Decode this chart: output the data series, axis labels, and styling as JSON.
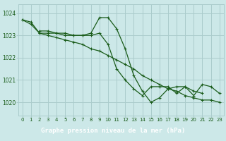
{
  "title": "Graphe pression niveau de la mer (hPa)",
  "bg_color": "#cce8e8",
  "plot_bg_color": "#cce8e8",
  "grid_color": "#aacccc",
  "line_color": "#1a5c1a",
  "label_bg_color": "#2d6e2d",
  "label_text_color": "#ffffff",
  "x_ticks": [
    0,
    1,
    2,
    3,
    4,
    5,
    6,
    7,
    8,
    9,
    10,
    11,
    12,
    13,
    14,
    15,
    16,
    17,
    18,
    19,
    20,
    21,
    22,
    23
  ],
  "y_ticks": [
    1020,
    1021,
    1022,
    1023,
    1024
  ],
  "ylim": [
    1019.4,
    1024.4
  ],
  "xlim": [
    -0.5,
    23.5
  ],
  "series_x": [
    [
      0,
      1,
      2,
      3,
      4,
      5,
      6,
      7,
      8,
      9,
      10,
      11,
      12,
      13,
      14,
      15,
      16,
      17,
      18,
      19,
      20,
      21,
      22,
      23
    ],
    [
      0,
      1,
      2,
      3,
      4,
      5,
      6,
      7,
      8,
      9,
      10,
      11,
      12,
      13,
      14,
      15,
      16,
      17,
      18,
      19,
      20,
      21,
      22,
      23
    ],
    [
      0,
      1,
      2,
      3,
      4,
      5,
      6,
      7,
      8,
      9,
      10,
      11,
      12,
      13,
      14,
      15,
      16,
      17,
      18,
      19,
      20,
      21,
      22,
      23
    ]
  ],
  "series_y": [
    [
      1023.7,
      1023.6,
      1023.1,
      1023.1,
      1023.1,
      1023.0,
      1023.0,
      1023.0,
      1023.1,
      1023.8,
      1023.8,
      1023.3,
      1022.4,
      1021.2,
      1020.5,
      1020.0,
      1020.2,
      1020.6,
      1020.7,
      1020.7,
      1020.3,
      1020.8,
      1020.7,
      1020.4
    ],
    [
      1023.7,
      1023.5,
      1023.1,
      1023.0,
      1022.9,
      1022.8,
      1022.7,
      1022.6,
      1022.4,
      1022.3,
      1022.1,
      1021.9,
      1021.7,
      1021.5,
      1021.2,
      1021.0,
      1020.8,
      1020.6,
      1020.5,
      1020.3,
      1020.2,
      1020.1,
      1020.1,
      1020.0
    ],
    [
      null,
      null,
      1023.2,
      1023.2,
      1023.1,
      1023.1,
      1023.0,
      1023.0,
      1023.0,
      1023.1,
      1022.6,
      1021.5,
      1021.0,
      1020.6,
      1020.3,
      1020.7,
      1020.7,
      1020.7,
      1020.4,
      1020.7,
      1020.5,
      1020.4,
      null,
      null
    ]
  ]
}
